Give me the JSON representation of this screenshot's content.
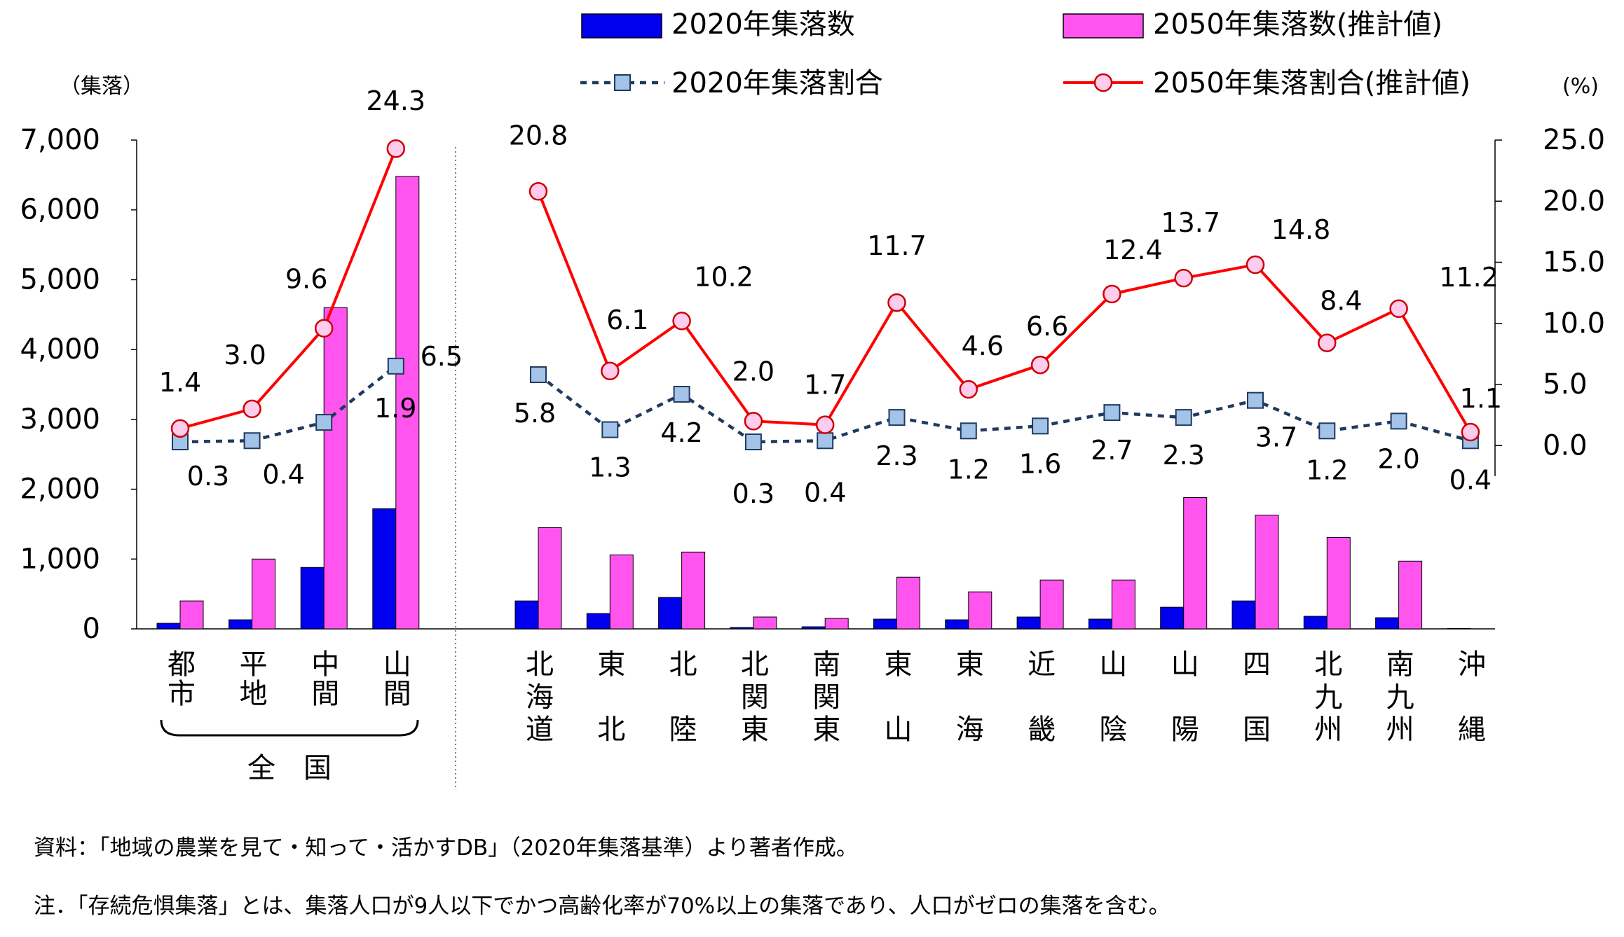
{
  "chart_data": {
    "type": "bar",
    "categories": [
      {
        "label": "都市",
        "group": "全国"
      },
      {
        "label": "平地",
        "group": "全国"
      },
      {
        "label": "中間",
        "group": "全国"
      },
      {
        "label": "山間",
        "group": "全国"
      },
      {
        "label": "北海道"
      },
      {
        "label": "東北"
      },
      {
        "label": "北陸"
      },
      {
        "label": "北関東"
      },
      {
        "label": "南関東"
      },
      {
        "label": "東山"
      },
      {
        "label": "東海"
      },
      {
        "label": "近畿"
      },
      {
        "label": "山陰"
      },
      {
        "label": "山陽"
      },
      {
        "label": "四国"
      },
      {
        "label": "北九州"
      },
      {
        "label": "南九州"
      },
      {
        "label": "沖縄"
      }
    ],
    "group_label": "全　国",
    "series": [
      {
        "name": "2020年集落数",
        "type": "bar",
        "axis": "left",
        "color": "#0000ee",
        "values": [
          80,
          130,
          880,
          1720,
          400,
          220,
          450,
          20,
          30,
          140,
          130,
          170,
          140,
          310,
          400,
          180,
          160,
          5
        ]
      },
      {
        "name": "2050年集落数(推計値)",
        "type": "bar",
        "axis": "left",
        "color": "#ff55ee",
        "values": [
          400,
          1000,
          4600,
          6480,
          1450,
          1060,
          1100,
          170,
          150,
          740,
          530,
          700,
          700,
          1880,
          1630,
          1310,
          970,
          0
        ]
      },
      {
        "name": "2020年集落割合",
        "type": "line",
        "axis": "right",
        "color": "#1f3a5f",
        "marker": "square",
        "marker_fill": "#a3c4e8",
        "dashed": true,
        "values": [
          0.3,
          0.4,
          1.9,
          6.5,
          5.8,
          1.3,
          4.2,
          0.3,
          0.4,
          2.3,
          1.2,
          1.6,
          2.7,
          2.3,
          3.7,
          1.2,
          2.0,
          0.4
        ],
        "labels": [
          "0.3",
          "0.4",
          "1.9",
          "6.5",
          "5.8",
          "1.3",
          "4.2",
          "0.3",
          "0.4",
          "2.3",
          "1.2",
          "1.6",
          "2.7",
          "2.3",
          "3.7",
          "1.2",
          "2.0",
          "0.4"
        ]
      },
      {
        "name": "2050年集落割合(推計値)",
        "type": "line",
        "axis": "right",
        "color": "#ff0000",
        "marker": "circle",
        "marker_fill": "#ffccee",
        "values": [
          1.4,
          3.0,
          9.6,
          24.3,
          20.8,
          6.1,
          10.2,
          2.0,
          1.7,
          11.7,
          4.6,
          6.6,
          12.4,
          13.7,
          14.8,
          8.4,
          11.2,
          1.1
        ],
        "labels": [
          "1.4",
          "3.0",
          "9.6",
          "24.3",
          "20.8",
          "6.1",
          "10.2",
          "2.0",
          "1.7",
          "11.7",
          "4.6",
          "6.6",
          "12.4",
          "13.7",
          "14.8",
          "8.4",
          "11.2",
          "1.1"
        ]
      }
    ],
    "y_left": {
      "unit": "（集落）",
      "min": 0,
      "max": 7000,
      "ticks": [
        "0",
        "1,000",
        "2,000",
        "3,000",
        "4,000",
        "5,000",
        "6,000",
        "7,000"
      ]
    },
    "y_right": {
      "unit": "(%)",
      "min": -15,
      "max": 25,
      "ticks": [
        "0.0",
        "5.0",
        "10.0",
        "15.0",
        "20.0",
        "25.0"
      ]
    },
    "legend": {
      "placement": "top"
    },
    "grid": false
  },
  "notes": {
    "source": "資料：「地域の農業を見て・知って・活かすDB」（2020年集落基準）より著者作成。",
    "note": "注．「存続危惧集落」とは、集落人口が9人以下でかつ高齢化率が70%以上の集落であり、人口がゼロの集落を含む。"
  }
}
